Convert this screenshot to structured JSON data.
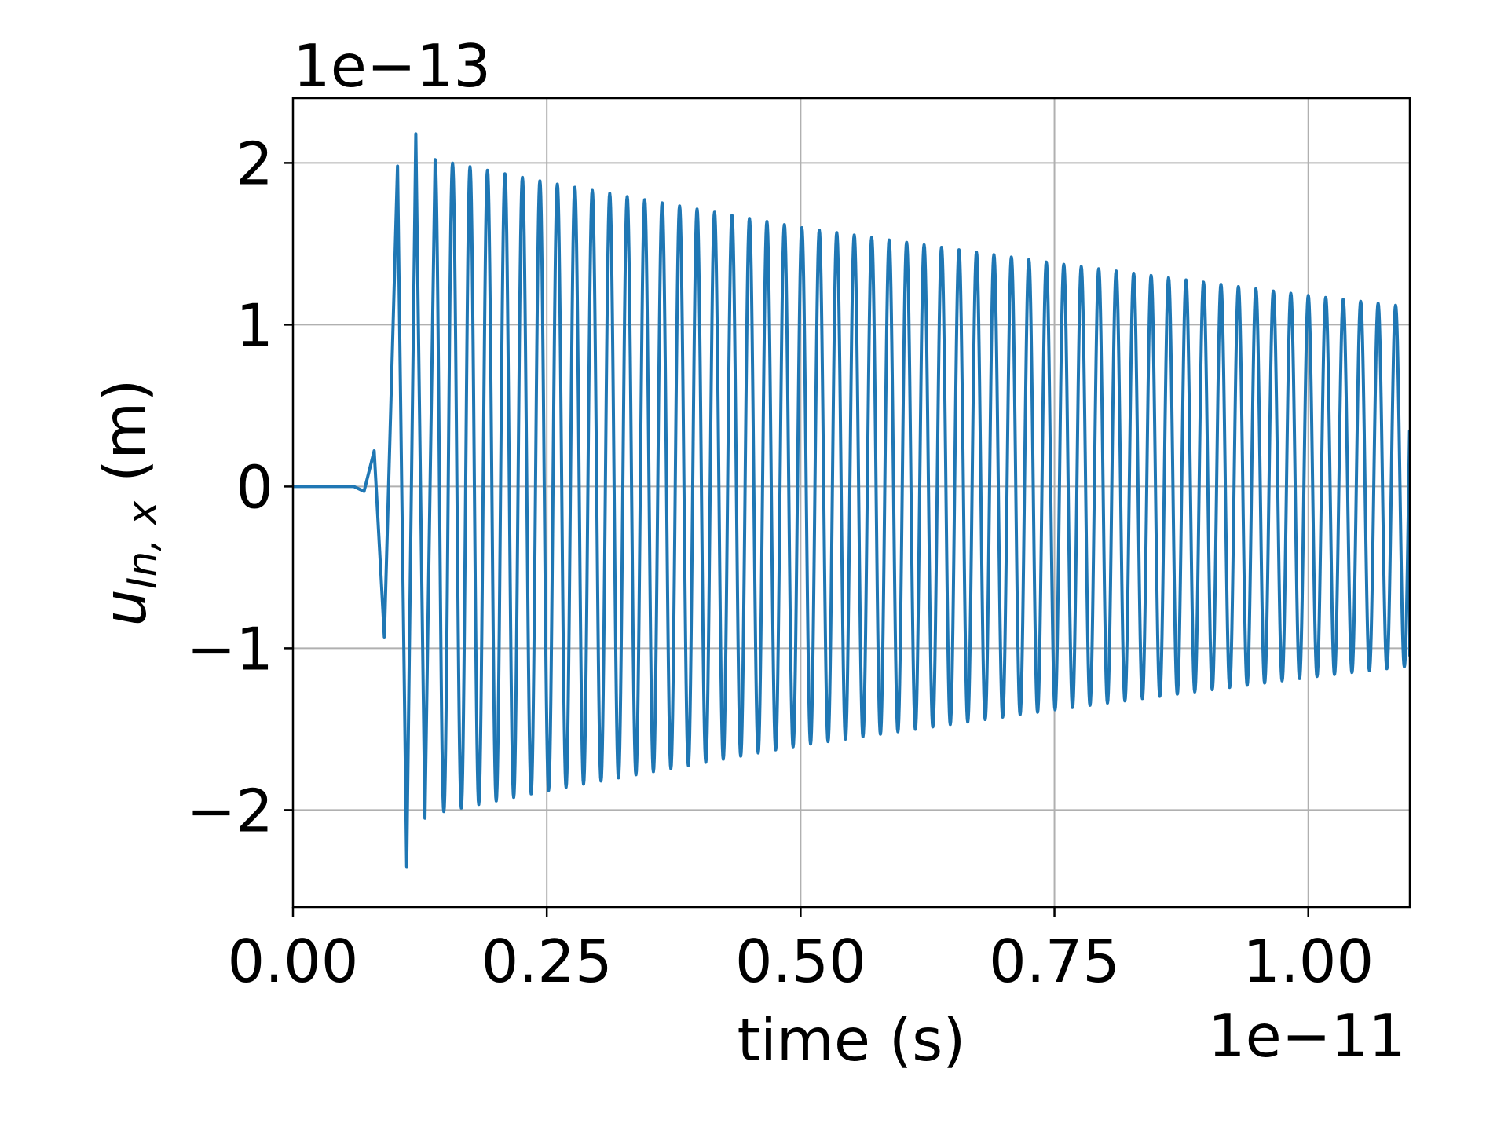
{
  "chart_data": {
    "type": "line",
    "title": "",
    "xlabel": "time (s)",
    "ylabel_main": "u",
    "ylabel_subscript": "In, x",
    "ylabel_unit": " (m)",
    "x_offset_label": "1e−11",
    "y_offset_label": "1e−13",
    "xlim": [
      0,
      1.1
    ],
    "ylim": [
      -2.6,
      2.4
    ],
    "x_ticks": [
      0,
      0.25,
      0.5,
      0.75,
      1.0
    ],
    "x_tick_labels": [
      "0.00",
      "0.25",
      "0.50",
      "0.75",
      "1.00"
    ],
    "y_ticks": [
      -2,
      -1,
      0,
      1,
      2
    ],
    "y_tick_labels": [
      "−2",
      "−1",
      "0",
      "1",
      "2"
    ],
    "grid": true,
    "series": [
      {
        "color": "#1f77b4",
        "onset_time": 0.06,
        "period": 0.0172,
        "samples": [
          {
            "t": 0.0,
            "u": 0.0
          },
          {
            "t": 0.06,
            "u": 0.0
          },
          {
            "t": 0.07,
            "u": -0.03
          },
          {
            "t": 0.08,
            "u": 0.22
          },
          {
            "t": 0.09,
            "u": -0.93
          },
          {
            "t": 0.103,
            "u": 1.98
          },
          {
            "t": 0.112,
            "u": -2.35
          },
          {
            "t": 0.121,
            "u": 2.18
          },
          {
            "t": 0.13,
            "u": -2.05
          },
          {
            "t": 0.14,
            "u": 2.02
          },
          {
            "t": 0.25,
            "u": 1.88
          },
          {
            "t": 0.5,
            "u": 1.6
          },
          {
            "t": 0.75,
            "u": 1.38
          },
          {
            "t": 1.0,
            "u": 1.18
          },
          {
            "t": 1.1,
            "u": 1.11
          }
        ],
        "end_value": -1.05
      }
    ]
  }
}
